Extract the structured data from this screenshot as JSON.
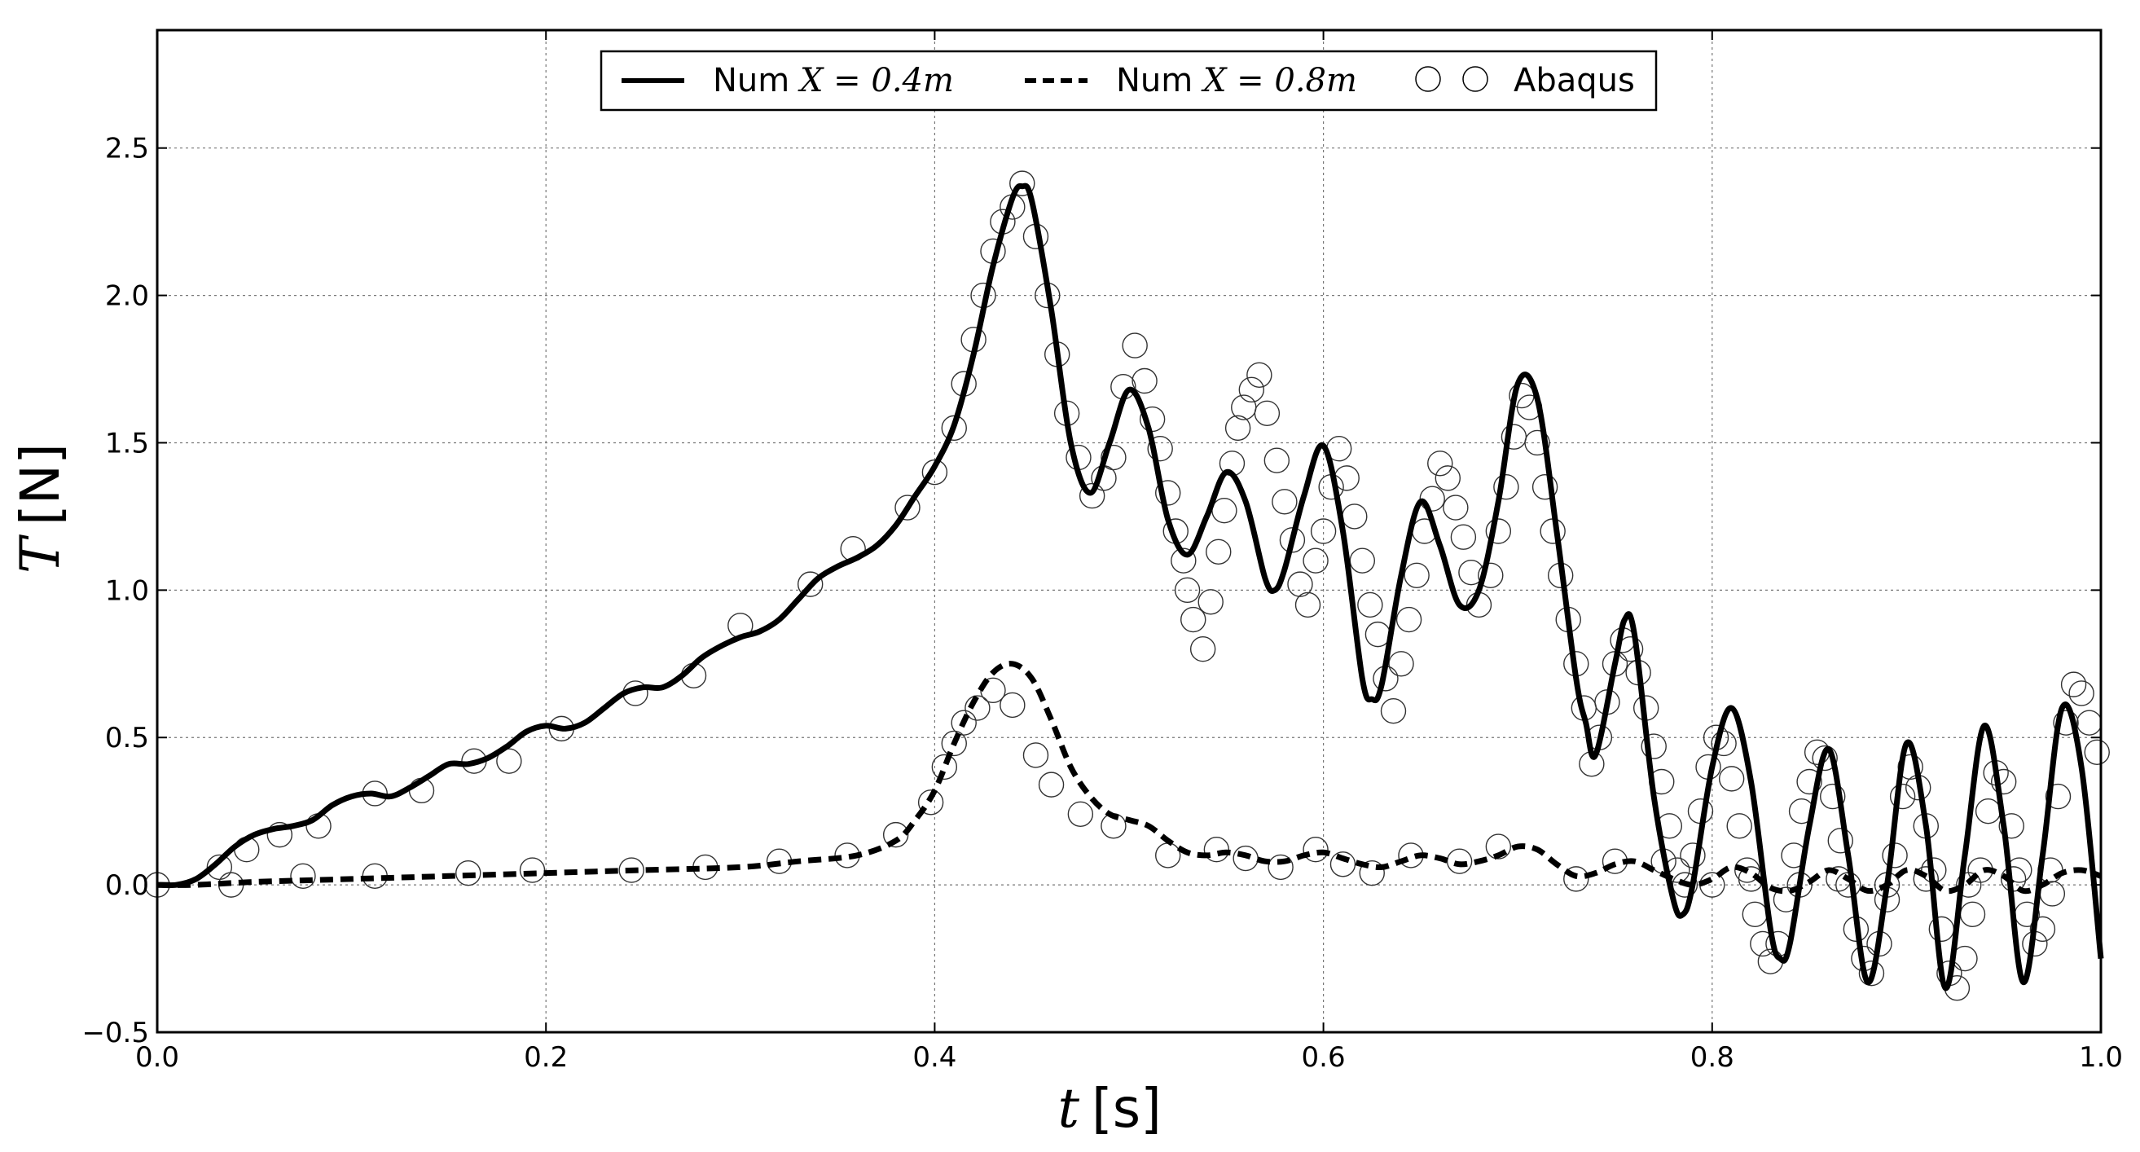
{
  "chart_data": {
    "type": "line",
    "xlabel_var": "t",
    "xlabel_unit": "[s]",
    "ylabel_var": "T",
    "ylabel_unit": "[N]",
    "xlim": [
      0.0,
      1.0
    ],
    "ylim": [
      -0.5,
      2.9
    ],
    "x_ticks": [
      0.0,
      0.2,
      0.4,
      0.6,
      0.8,
      1.0
    ],
    "x_tick_labels": [
      "0.0",
      "0.2",
      "0.4",
      "0.6",
      "0.8",
      "1.0"
    ],
    "y_ticks": [
      -0.5,
      0.0,
      0.5,
      1.0,
      1.5,
      2.0,
      2.5
    ],
    "y_tick_labels": [
      "−0.5",
      "0.0",
      "0.5",
      "1.0",
      "1.5",
      "2.0",
      "2.5"
    ],
    "grid": true,
    "legend_position": "top-center",
    "legend": [
      {
        "prefix": "Num ",
        "math": "X = 0.4m",
        "style": "solid"
      },
      {
        "prefix": "Num ",
        "math": "X = 0.8m",
        "style": "dashed"
      },
      {
        "prefix": "",
        "math": "",
        "label": "Abaqus",
        "style": "circles"
      }
    ],
    "series": [
      {
        "name": "Num X=0.4m",
        "style": "solid",
        "x": [
          0.0,
          0.01,
          0.02,
          0.03,
          0.04,
          0.05,
          0.06,
          0.07,
          0.08,
          0.09,
          0.1,
          0.11,
          0.12,
          0.13,
          0.14,
          0.15,
          0.16,
          0.17,
          0.18,
          0.19,
          0.2,
          0.21,
          0.22,
          0.23,
          0.24,
          0.25,
          0.26,
          0.27,
          0.28,
          0.29,
          0.3,
          0.31,
          0.32,
          0.33,
          0.34,
          0.35,
          0.36,
          0.37,
          0.38,
          0.39,
          0.4,
          0.41,
          0.42,
          0.43,
          0.44,
          0.445,
          0.45,
          0.46,
          0.47,
          0.48,
          0.49,
          0.5,
          0.51,
          0.52,
          0.53,
          0.54,
          0.55,
          0.56,
          0.57,
          0.575,
          0.58,
          0.59,
          0.6,
          0.61,
          0.62,
          0.625,
          0.63,
          0.64,
          0.65,
          0.66,
          0.67,
          0.68,
          0.69,
          0.7,
          0.71,
          0.72,
          0.73,
          0.735,
          0.74,
          0.75,
          0.755,
          0.76,
          0.77,
          0.78,
          0.785,
          0.79,
          0.8,
          0.81,
          0.82,
          0.83,
          0.835,
          0.84,
          0.85,
          0.86,
          0.87,
          0.88,
          0.89,
          0.9,
          0.91,
          0.92,
          0.93,
          0.94,
          0.95,
          0.96,
          0.97,
          0.98,
          0.99,
          1.0
        ],
        "y": [
          0.0,
          0.0,
          0.02,
          0.07,
          0.13,
          0.17,
          0.19,
          0.2,
          0.22,
          0.27,
          0.3,
          0.31,
          0.3,
          0.33,
          0.37,
          0.41,
          0.41,
          0.43,
          0.47,
          0.52,
          0.54,
          0.53,
          0.55,
          0.6,
          0.65,
          0.67,
          0.67,
          0.71,
          0.77,
          0.81,
          0.84,
          0.86,
          0.9,
          0.97,
          1.04,
          1.08,
          1.11,
          1.15,
          1.22,
          1.32,
          1.42,
          1.56,
          1.8,
          2.1,
          2.33,
          2.37,
          2.32,
          1.95,
          1.5,
          1.33,
          1.5,
          1.68,
          1.55,
          1.24,
          1.12,
          1.25,
          1.4,
          1.3,
          1.04,
          1.0,
          1.07,
          1.32,
          1.49,
          1.2,
          0.7,
          0.63,
          0.68,
          1.05,
          1.3,
          1.15,
          0.95,
          1.0,
          1.3,
          1.7,
          1.65,
          1.2,
          0.7,
          0.55,
          0.44,
          0.75,
          0.9,
          0.85,
          0.3,
          -0.05,
          -0.1,
          0.0,
          0.4,
          0.6,
          0.35,
          -0.15,
          -0.25,
          -0.2,
          0.2,
          0.46,
          0.1,
          -0.33,
          0.0,
          0.48,
          0.2,
          -0.35,
          0.1,
          0.54,
          0.2,
          -0.33,
          0.1,
          0.6,
          0.4,
          -0.25
        ]
      },
      {
        "name": "Num X=0.8m",
        "style": "dashed",
        "x": [
          0.0,
          0.02,
          0.05,
          0.1,
          0.15,
          0.2,
          0.25,
          0.3,
          0.33,
          0.36,
          0.38,
          0.39,
          0.4,
          0.41,
          0.42,
          0.43,
          0.44,
          0.45,
          0.46,
          0.47,
          0.48,
          0.49,
          0.5,
          0.51,
          0.52,
          0.53,
          0.54,
          0.55,
          0.56,
          0.57,
          0.58,
          0.59,
          0.6,
          0.61,
          0.62,
          0.63,
          0.64,
          0.65,
          0.66,
          0.67,
          0.68,
          0.69,
          0.7,
          0.71,
          0.72,
          0.73,
          0.74,
          0.75,
          0.76,
          0.77,
          0.78,
          0.79,
          0.8,
          0.81,
          0.82,
          0.83,
          0.84,
          0.85,
          0.86,
          0.87,
          0.88,
          0.89,
          0.9,
          0.91,
          0.92,
          0.93,
          0.94,
          0.95,
          0.96,
          0.97,
          0.98,
          0.99,
          1.0
        ],
        "y": [
          0.0,
          0.0,
          0.01,
          0.02,
          0.03,
          0.04,
          0.05,
          0.06,
          0.08,
          0.1,
          0.15,
          0.22,
          0.32,
          0.48,
          0.62,
          0.72,
          0.75,
          0.7,
          0.56,
          0.4,
          0.3,
          0.24,
          0.22,
          0.2,
          0.15,
          0.11,
          0.1,
          0.11,
          0.1,
          0.08,
          0.08,
          0.1,
          0.11,
          0.09,
          0.07,
          0.06,
          0.08,
          0.1,
          0.09,
          0.07,
          0.08,
          0.1,
          0.13,
          0.12,
          0.07,
          0.03,
          0.04,
          0.07,
          0.08,
          0.05,
          0.02,
          0.0,
          0.02,
          0.06,
          0.04,
          -0.01,
          -0.02,
          0.01,
          0.05,
          0.02,
          -0.02,
          0.0,
          0.05,
          0.03,
          -0.02,
          0.0,
          0.05,
          0.03,
          -0.02,
          0.0,
          0.04,
          0.05,
          0.03
        ]
      },
      {
        "name": "Abaqus",
        "style": "circles",
        "points": [
          [
            0.0,
            0.0
          ],
          [
            0.032,
            0.06
          ],
          [
            0.046,
            0.12
          ],
          [
            0.063,
            0.17
          ],
          [
            0.083,
            0.2
          ],
          [
            0.112,
            0.31
          ],
          [
            0.136,
            0.32
          ],
          [
            0.163,
            0.42
          ],
          [
            0.181,
            0.42
          ],
          [
            0.208,
            0.53
          ],
          [
            0.246,
            0.65
          ],
          [
            0.276,
            0.71
          ],
          [
            0.3,
            0.88
          ],
          [
            0.336,
            1.02
          ],
          [
            0.358,
            1.14
          ],
          [
            0.386,
            1.28
          ],
          [
            0.4,
            1.4
          ],
          [
            0.41,
            1.55
          ],
          [
            0.415,
            1.7
          ],
          [
            0.42,
            1.85
          ],
          [
            0.425,
            2.0
          ],
          [
            0.43,
            2.15
          ],
          [
            0.435,
            2.25
          ],
          [
            0.44,
            2.3
          ],
          [
            0.445,
            2.38
          ],
          [
            0.452,
            2.2
          ],
          [
            0.458,
            2.0
          ],
          [
            0.463,
            1.8
          ],
          [
            0.468,
            1.6
          ],
          [
            0.474,
            1.45
          ],
          [
            0.481,
            1.32
          ],
          [
            0.487,
            1.38
          ],
          [
            0.492,
            1.45
          ],
          [
            0.497,
            1.69
          ],
          [
            0.503,
            1.83
          ],
          [
            0.508,
            1.71
          ],
          [
            0.512,
            1.58
          ],
          [
            0.516,
            1.48
          ],
          [
            0.52,
            1.33
          ],
          [
            0.524,
            1.2
          ],
          [
            0.528,
            1.1
          ],
          [
            0.53,
            1.0
          ],
          [
            0.533,
            0.9
          ],
          [
            0.538,
            0.8
          ],
          [
            0.542,
            0.96
          ],
          [
            0.546,
            1.13
          ],
          [
            0.549,
            1.27
          ],
          [
            0.553,
            1.43
          ],
          [
            0.556,
            1.55
          ],
          [
            0.559,
            1.62
          ],
          [
            0.563,
            1.68
          ],
          [
            0.567,
            1.73
          ],
          [
            0.571,
            1.6
          ],
          [
            0.576,
            1.44
          ],
          [
            0.58,
            1.3
          ],
          [
            0.584,
            1.17
          ],
          [
            0.588,
            1.02
          ],
          [
            0.592,
            0.95
          ],
          [
            0.596,
            1.1
          ],
          [
            0.6,
            1.2
          ],
          [
            0.604,
            1.35
          ],
          [
            0.608,
            1.48
          ],
          [
            0.612,
            1.38
          ],
          [
            0.616,
            1.25
          ],
          [
            0.62,
            1.1
          ],
          [
            0.624,
            0.95
          ],
          [
            0.628,
            0.85
          ],
          [
            0.632,
            0.7
          ],
          [
            0.636,
            0.59
          ],
          [
            0.64,
            0.75
          ],
          [
            0.644,
            0.9
          ],
          [
            0.648,
            1.05
          ],
          [
            0.652,
            1.2
          ],
          [
            0.656,
            1.31
          ],
          [
            0.66,
            1.43
          ],
          [
            0.664,
            1.38
          ],
          [
            0.668,
            1.28
          ],
          [
            0.672,
            1.18
          ],
          [
            0.676,
            1.06
          ],
          [
            0.68,
            0.95
          ],
          [
            0.686,
            1.05
          ],
          [
            0.69,
            1.2
          ],
          [
            0.694,
            1.35
          ],
          [
            0.698,
            1.52
          ],
          [
            0.702,
            1.66
          ],
          [
            0.706,
            1.62
          ],
          [
            0.71,
            1.5
          ],
          [
            0.714,
            1.35
          ],
          [
            0.718,
            1.2
          ],
          [
            0.722,
            1.05
          ],
          [
            0.726,
            0.9
          ],
          [
            0.73,
            0.75
          ],
          [
            0.734,
            0.6
          ],
          [
            0.738,
            0.41
          ],
          [
            0.742,
            0.5
          ],
          [
            0.746,
            0.62
          ],
          [
            0.75,
            0.75
          ],
          [
            0.754,
            0.83
          ],
          [
            0.758,
            0.8
          ],
          [
            0.762,
            0.72
          ],
          [
            0.766,
            0.6
          ],
          [
            0.77,
            0.47
          ],
          [
            0.774,
            0.35
          ],
          [
            0.778,
            0.2
          ],
          [
            0.782,
            0.05
          ],
          [
            0.786,
            0.0
          ],
          [
            0.79,
            0.1
          ],
          [
            0.794,
            0.25
          ],
          [
            0.798,
            0.4
          ],
          [
            0.802,
            0.5
          ],
          [
            0.806,
            0.48
          ],
          [
            0.81,
            0.36
          ],
          [
            0.814,
            0.2
          ],
          [
            0.818,
            0.05
          ],
          [
            0.822,
            -0.1
          ],
          [
            0.826,
            -0.2
          ],
          [
            0.83,
            -0.26
          ],
          [
            0.834,
            -0.2
          ],
          [
            0.838,
            -0.05
          ],
          [
            0.842,
            0.1
          ],
          [
            0.846,
            0.25
          ],
          [
            0.85,
            0.35
          ],
          [
            0.854,
            0.45
          ],
          [
            0.858,
            0.43
          ],
          [
            0.862,
            0.3
          ],
          [
            0.866,
            0.15
          ],
          [
            0.87,
            0.0
          ],
          [
            0.874,
            -0.15
          ],
          [
            0.878,
            -0.25
          ],
          [
            0.882,
            -0.3
          ],
          [
            0.886,
            -0.2
          ],
          [
            0.89,
            -0.05
          ],
          [
            0.894,
            0.1
          ],
          [
            0.898,
            0.3
          ],
          [
            0.902,
            0.4
          ],
          [
            0.906,
            0.33
          ],
          [
            0.91,
            0.2
          ],
          [
            0.914,
            0.05
          ],
          [
            0.918,
            -0.15
          ],
          [
            0.922,
            -0.3
          ],
          [
            0.926,
            -0.35
          ],
          [
            0.93,
            -0.25
          ],
          [
            0.934,
            -0.1
          ],
          [
            0.938,
            0.05
          ],
          [
            0.942,
            0.25
          ],
          [
            0.946,
            0.38
          ],
          [
            0.95,
            0.35
          ],
          [
            0.954,
            0.2
          ],
          [
            0.958,
            0.05
          ],
          [
            0.962,
            -0.1
          ],
          [
            0.966,
            -0.2
          ],
          [
            0.97,
            -0.15
          ],
          [
            0.974,
            0.05
          ],
          [
            0.978,
            0.3
          ],
          [
            0.982,
            0.55
          ],
          [
            0.986,
            0.68
          ],
          [
            0.99,
            0.65
          ],
          [
            0.994,
            0.55
          ],
          [
            0.998,
            0.45
          ],
          [
            0.038,
            0.0
          ],
          [
            0.075,
            0.03
          ],
          [
            0.112,
            0.03
          ],
          [
            0.16,
            0.04
          ],
          [
            0.193,
            0.05
          ],
          [
            0.244,
            0.05
          ],
          [
            0.282,
            0.06
          ],
          [
            0.32,
            0.08
          ],
          [
            0.355,
            0.1
          ],
          [
            0.38,
            0.17
          ],
          [
            0.398,
            0.28
          ],
          [
            0.405,
            0.4
          ],
          [
            0.41,
            0.48
          ],
          [
            0.415,
            0.55
          ],
          [
            0.422,
            0.6
          ],
          [
            0.43,
            0.66
          ],
          [
            0.44,
            0.61
          ],
          [
            0.452,
            0.44
          ],
          [
            0.46,
            0.34
          ],
          [
            0.475,
            0.24
          ],
          [
            0.492,
            0.2
          ],
          [
            0.52,
            0.1
          ],
          [
            0.545,
            0.12
          ],
          [
            0.56,
            0.09
          ],
          [
            0.578,
            0.06
          ],
          [
            0.596,
            0.12
          ],
          [
            0.61,
            0.07
          ],
          [
            0.625,
            0.04
          ],
          [
            0.645,
            0.1
          ],
          [
            0.67,
            0.08
          ],
          [
            0.69,
            0.13
          ],
          [
            0.73,
            0.02
          ],
          [
            0.75,
            0.08
          ],
          [
            0.775,
            0.08
          ],
          [
            0.8,
            0.0
          ],
          [
            0.82,
            0.02
          ],
          [
            0.845,
            0.0
          ],
          [
            0.865,
            0.02
          ],
          [
            0.89,
            0.0
          ],
          [
            0.91,
            0.02
          ],
          [
            0.932,
            0.0
          ],
          [
            0.955,
            0.02
          ],
          [
            0.975,
            -0.03
          ]
        ]
      }
    ]
  }
}
